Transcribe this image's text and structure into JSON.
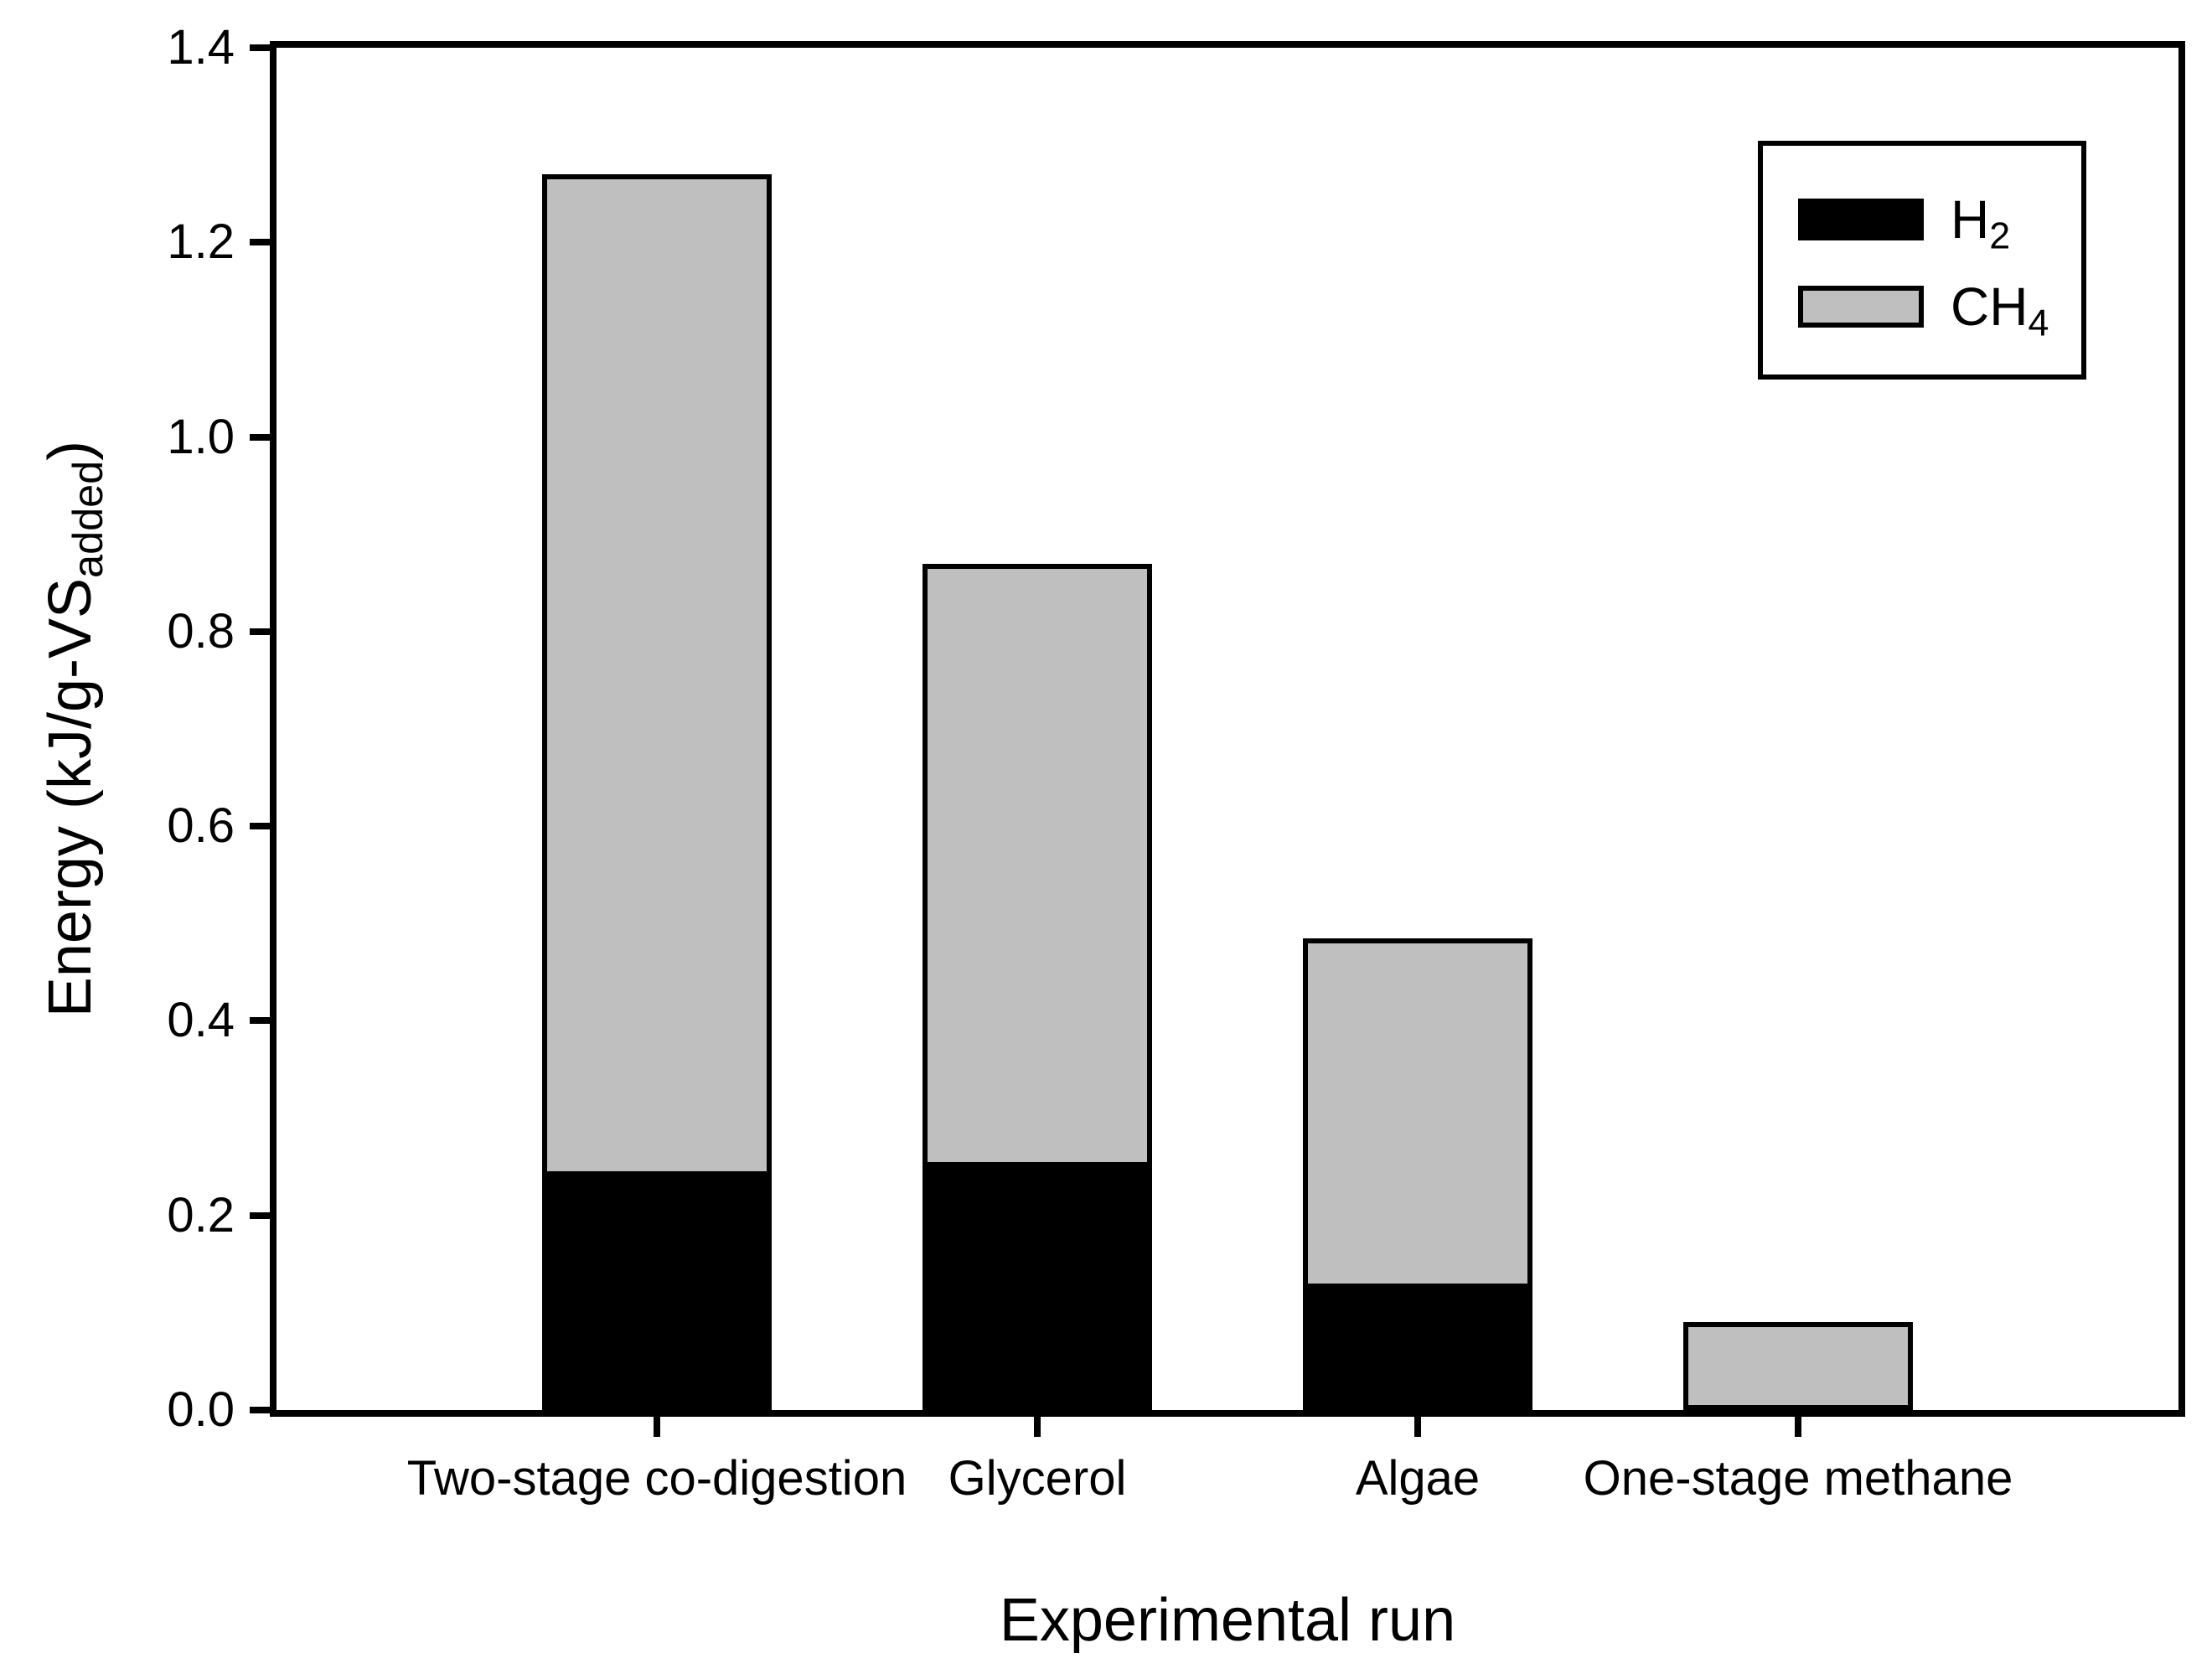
{
  "chart_data": {
    "type": "bar",
    "stacked": true,
    "title": "",
    "xlabel": "Experimental run",
    "ylabel_parts": {
      "pre": "Energy (kJ/g-VS",
      "sub": "added",
      "post": ")"
    },
    "categories": [
      "Two-stage co-digestion",
      "Glycerol",
      "Algae",
      "One-stage methane"
    ],
    "series": [
      {
        "name": "H2",
        "legend_text": "H",
        "legend_sub": "2",
        "color": "#000000",
        "values": [
          0.24,
          0.25,
          0.125,
          0
        ]
      },
      {
        "name": "CH4",
        "legend_text": "CH",
        "legend_sub": "4",
        "color": "#bfbfbf",
        "values": [
          1.03,
          0.62,
          0.36,
          0.09
        ]
      }
    ],
    "ylim": [
      0,
      1.4
    ],
    "yticks": [
      "0.0",
      "0.2",
      "0.4",
      "0.6",
      "0.8",
      "1.0",
      "1.2",
      "1.4"
    ],
    "grid": false,
    "legend_position": "top-right",
    "colors": {
      "axis": "#000000",
      "text": "#000000",
      "background": "#ffffff"
    }
  }
}
